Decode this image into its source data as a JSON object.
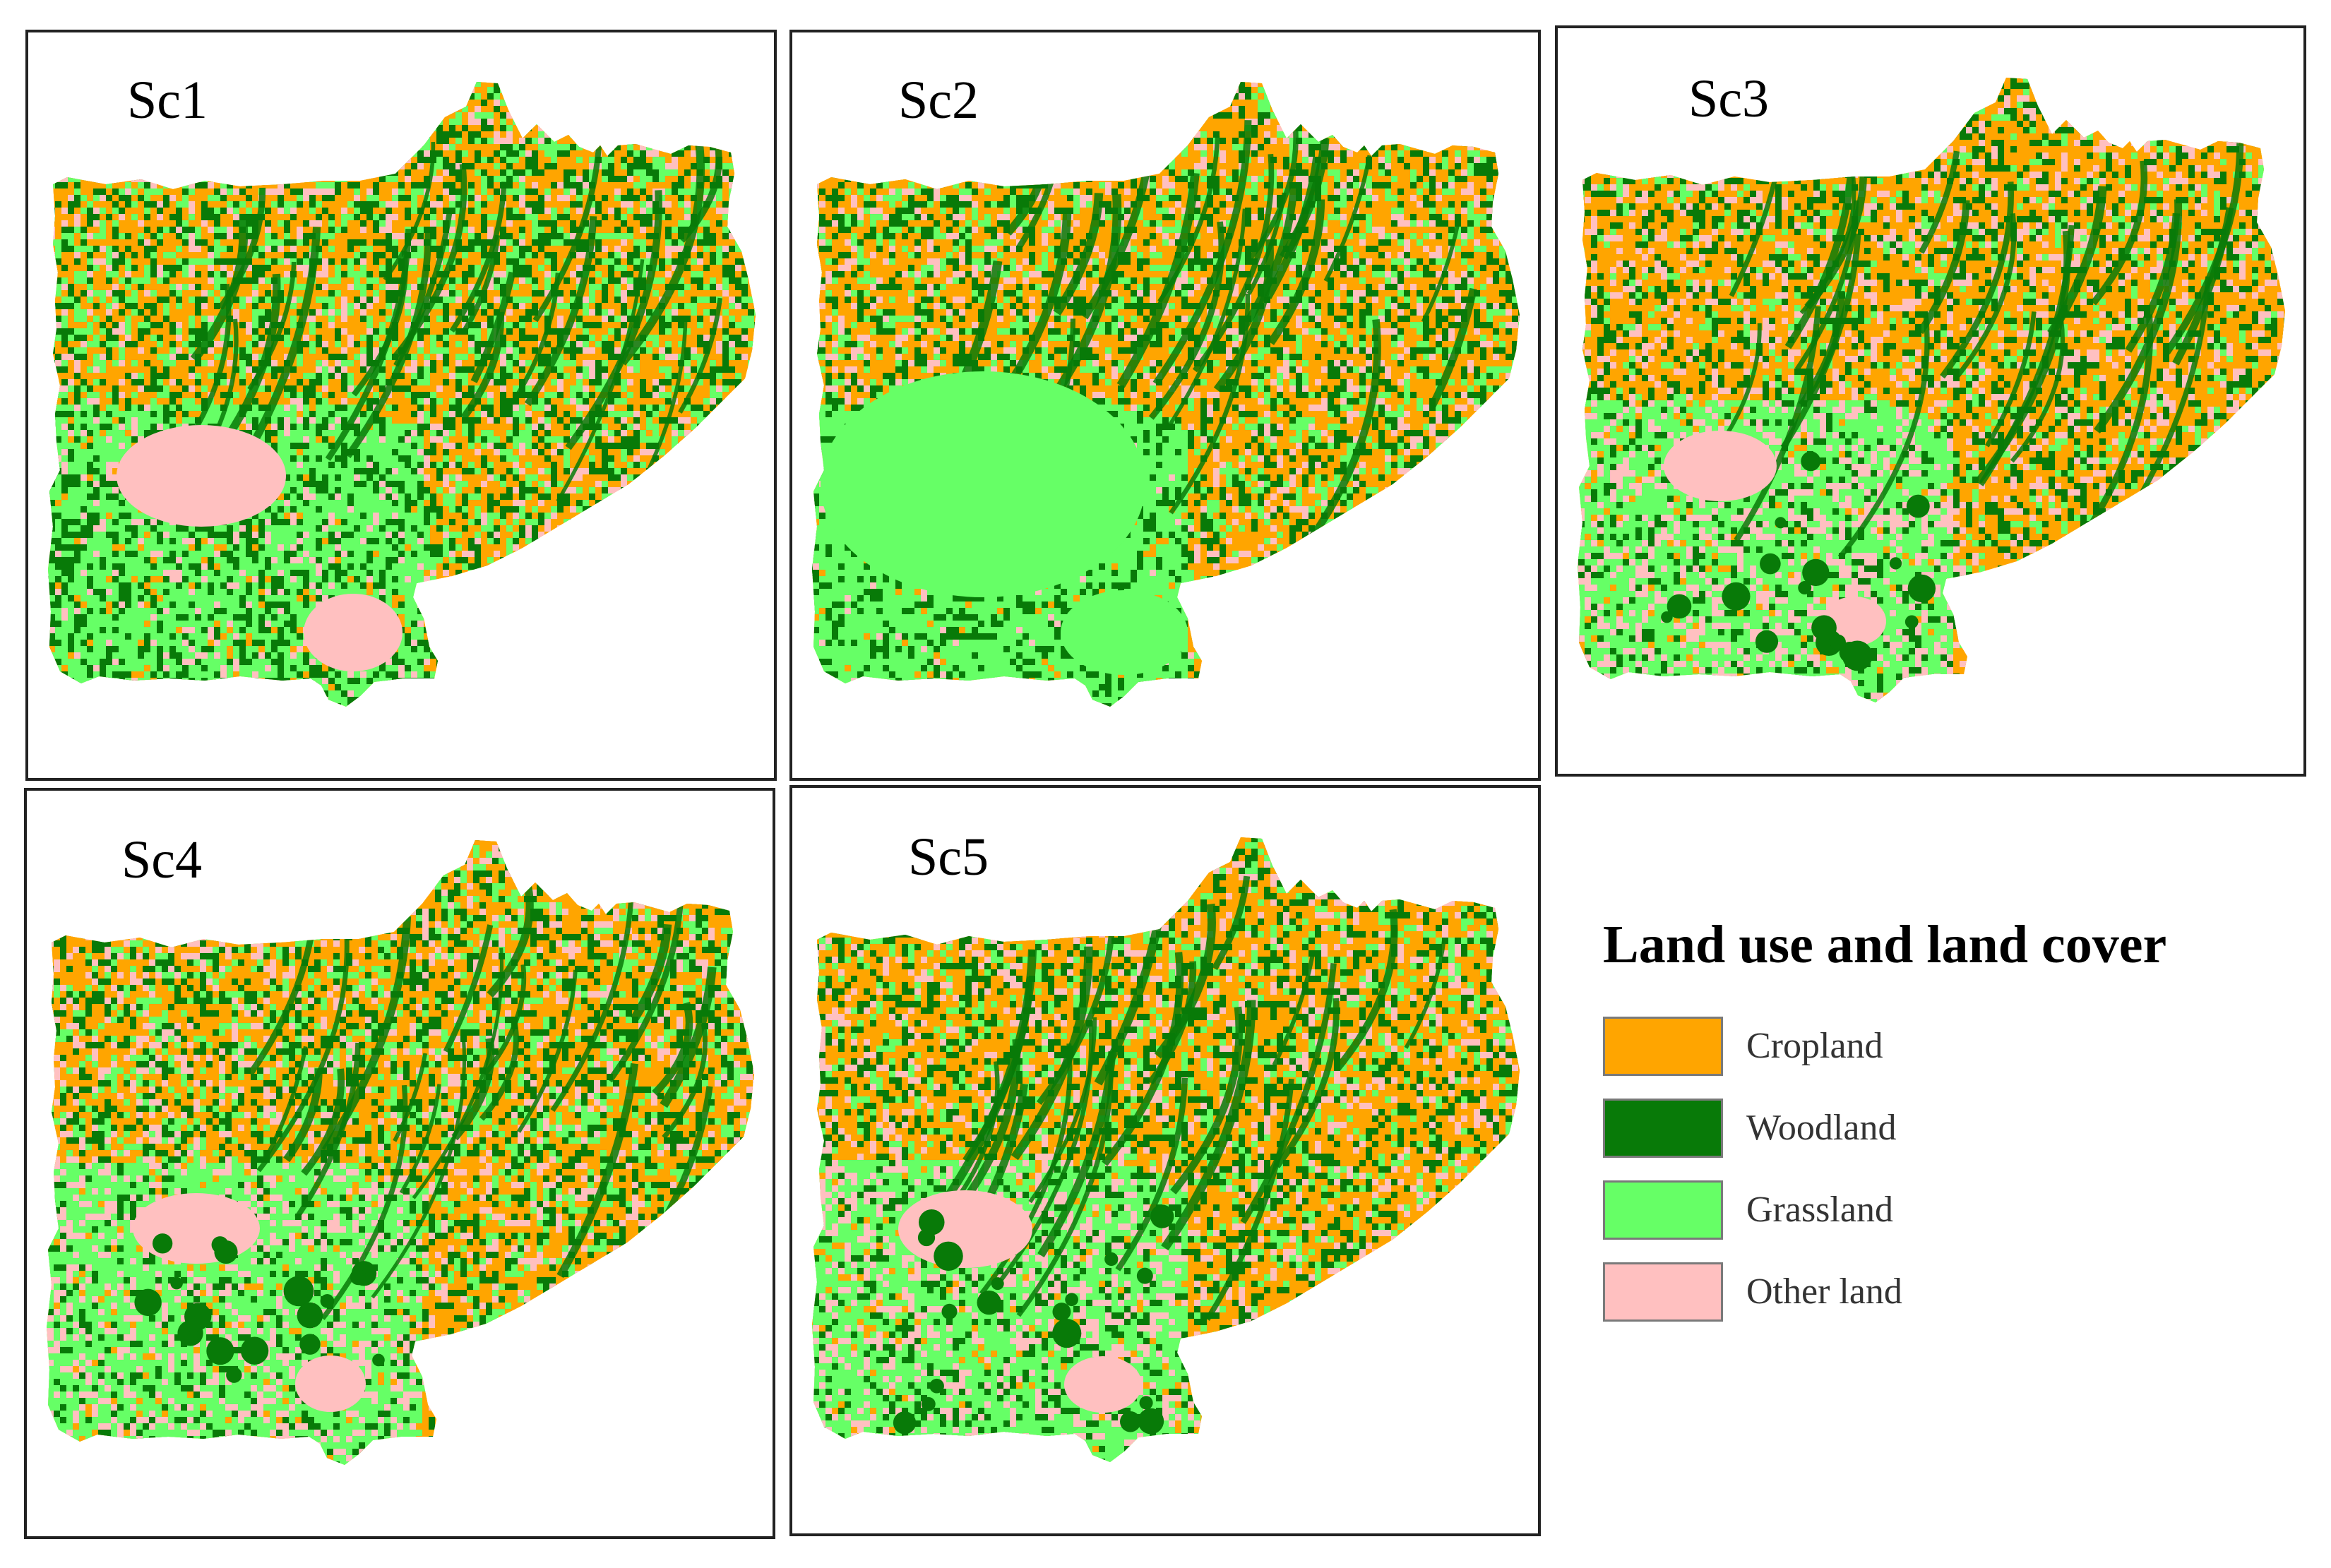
{
  "panels": [
    {
      "id": "sc1",
      "label": "Sc1"
    },
    {
      "id": "sc2",
      "label": "Sc2"
    },
    {
      "id": "sc3",
      "label": "Sc3"
    },
    {
      "id": "sc4",
      "label": "Sc4"
    },
    {
      "id": "sc5",
      "label": "Sc5"
    }
  ],
  "legend": {
    "title": "Land use and land cover",
    "items": [
      {
        "label": "Cropland",
        "color": "#FFA500"
      },
      {
        "label": "Woodland",
        "color": "#087A08"
      },
      {
        "label": "Grassland",
        "color": "#66FF66"
      },
      {
        "label": "Other land",
        "color": "#FFC0C0"
      }
    ]
  }
}
